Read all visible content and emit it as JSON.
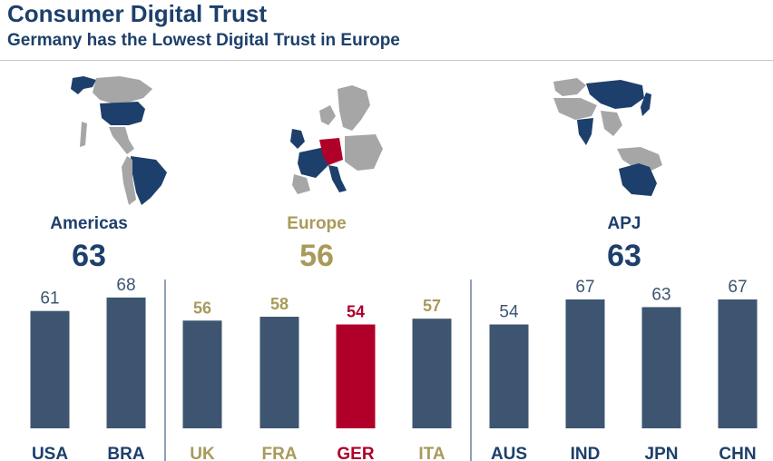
{
  "title": "Consumer Digital Trust",
  "subtitle": "Germany has the Lowest Digital Trust in Europe",
  "colors": {
    "navy": "#1d3f6b",
    "bar": "#3d5570",
    "olive": "#a89a5a",
    "crimson": "#b0002a",
    "map_grey": "#a6a6a6",
    "divider": "#1d3f6b"
  },
  "icons": {
    "americas_map": "americas-map-icon",
    "europe_map": "europe-map-icon",
    "apj_map": "apj-map-icon"
  },
  "regions": [
    {
      "name": "Americas",
      "score": "63"
    },
    {
      "name": "Europe",
      "score": "56"
    },
    {
      "name": "APJ",
      "score": "63"
    }
  ],
  "chart_data": {
    "type": "bar",
    "categories": [
      "USA",
      "BRA",
      "UK",
      "FRA",
      "GER",
      "ITA",
      "AUS",
      "IND",
      "JPN",
      "CHN"
    ],
    "values": [
      61,
      68,
      56,
      58,
      54,
      57,
      54,
      67,
      63,
      67
    ],
    "groups": [
      {
        "name": "Americas",
        "categories": [
          "USA",
          "BRA"
        ]
      },
      {
        "name": "Europe",
        "categories": [
          "UK",
          "FRA",
          "GER",
          "ITA"
        ]
      },
      {
        "name": "APJ",
        "categories": [
          "AUS",
          "IND",
          "JPN",
          "CHN"
        ]
      }
    ],
    "highlight": "GER",
    "title": "Consumer Digital Trust",
    "xlabel": "",
    "ylabel": "",
    "ylim": [
      0,
      70
    ],
    "grid": false
  }
}
